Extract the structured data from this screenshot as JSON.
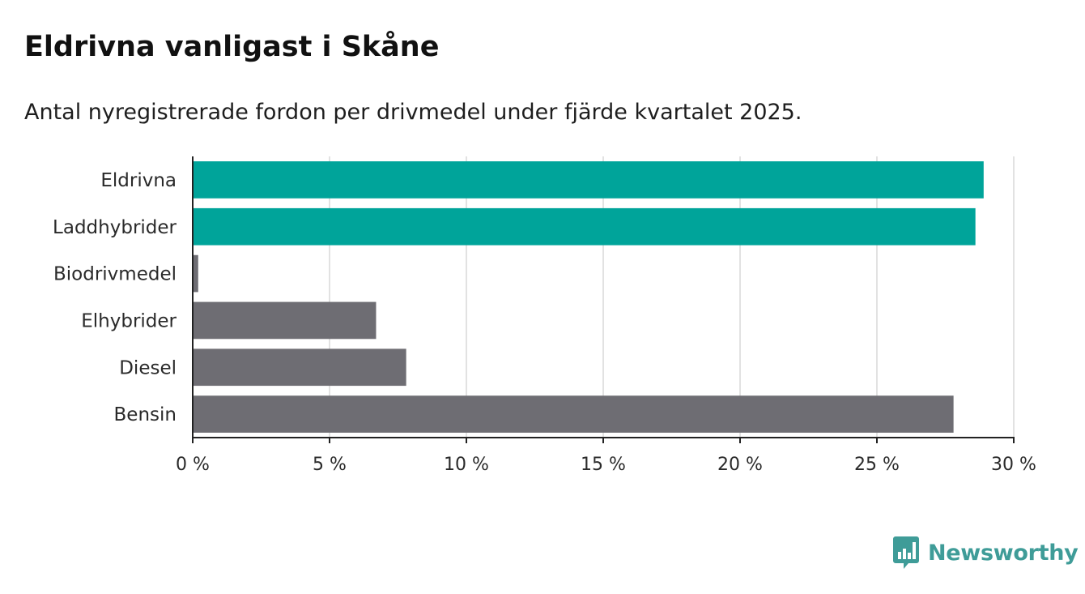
{
  "title": "Eldrivna vanligast i Skåne",
  "subtitle": "Antal nyregistrerade fordon per drivmedel under fjärde kvartalet 2025.",
  "brand": {
    "name": "Newsworthy",
    "icon": "newsworthy-chart-icon",
    "color": "#3f9c98"
  },
  "chart_data": {
    "type": "bar",
    "orientation": "horizontal",
    "categories": [
      "Eldrivna",
      "Laddhybrider",
      "Biodrivmedel",
      "Elhybrider",
      "Diesel",
      "Bensin"
    ],
    "values": [
      28.9,
      28.6,
      0.2,
      6.7,
      7.8,
      27.8
    ],
    "highlight": [
      true,
      true,
      false,
      false,
      false,
      false
    ],
    "colors": {
      "highlight": "#00a49a",
      "default": "#6e6d73"
    },
    "xlim": [
      0,
      30
    ],
    "xticks": [
      0,
      5,
      10,
      15,
      20,
      25,
      30
    ],
    "xtick_labels": [
      "0 %",
      "5 %",
      "10 %",
      "15 %",
      "20 %",
      "25 %",
      "30 %"
    ],
    "xlabel": "",
    "ylabel": "",
    "grid": "vertical"
  }
}
